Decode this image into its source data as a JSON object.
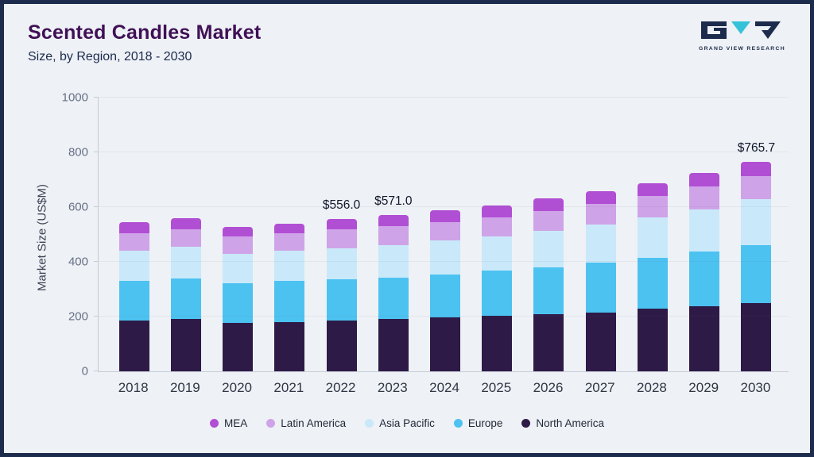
{
  "header": {
    "title": "Scented Candles Market",
    "subtitle": "Size, by Region, 2018 - 2030",
    "logo_text": "GRAND VIEW RESEARCH"
  },
  "chart_data": {
    "type": "bar",
    "stacked": true,
    "title": "Scented Candles Market",
    "subtitle": "Size, by Region, 2018 - 2030",
    "xlabel": "",
    "ylabel": "Market Size (US$M)",
    "ylim": [
      0,
      1000
    ],
    "yticks": [
      0,
      200,
      400,
      600,
      800,
      1000
    ],
    "grid": "faint-horizontal",
    "legend_position": "bottom-center",
    "categories": [
      "2018",
      "2019",
      "2020",
      "2021",
      "2022",
      "2023",
      "2024",
      "2025",
      "2026",
      "2027",
      "2028",
      "2029",
      "2030"
    ],
    "series": [
      {
        "name": "North America",
        "color": "#2e1a47",
        "values": [
          185,
          190,
          178,
          180,
          185,
          190,
          196,
          202,
          208,
          215,
          228,
          237,
          248
        ]
      },
      {
        "name": "Europe",
        "color": "#4cc2f1",
        "values": [
          145,
          150,
          144,
          150,
          152,
          153,
          159,
          165,
          173,
          182,
          187,
          200,
          214
        ]
      },
      {
        "name": "Asia Pacific",
        "color": "#c9e9fa",
        "values": [
          110,
          115,
          108,
          110,
          113,
          119,
          122,
          125,
          132,
          138,
          147,
          153,
          166
        ]
      },
      {
        "name": "Latin America",
        "color": "#cfa3e8",
        "values": [
          65,
          65,
          62,
          63,
          68,
          68,
          69,
          71,
          73,
          76,
          78,
          86,
          84
        ]
      },
      {
        "name": "MEA",
        "color": "#b14fd4",
        "values": [
          40,
          40,
          36,
          37,
          38,
          41,
          42,
          44,
          46,
          48,
          48,
          48,
          53.7
        ]
      }
    ],
    "totals": [
      545,
      560,
      528,
      540,
      556,
      571,
      588,
      607,
      632,
      659,
      688,
      724,
      765.7
    ],
    "annotations": [
      {
        "category": "2022",
        "text": "$556.0"
      },
      {
        "category": "2023",
        "text": "$571.0"
      },
      {
        "category": "2030",
        "text": "$765.7"
      }
    ]
  }
}
